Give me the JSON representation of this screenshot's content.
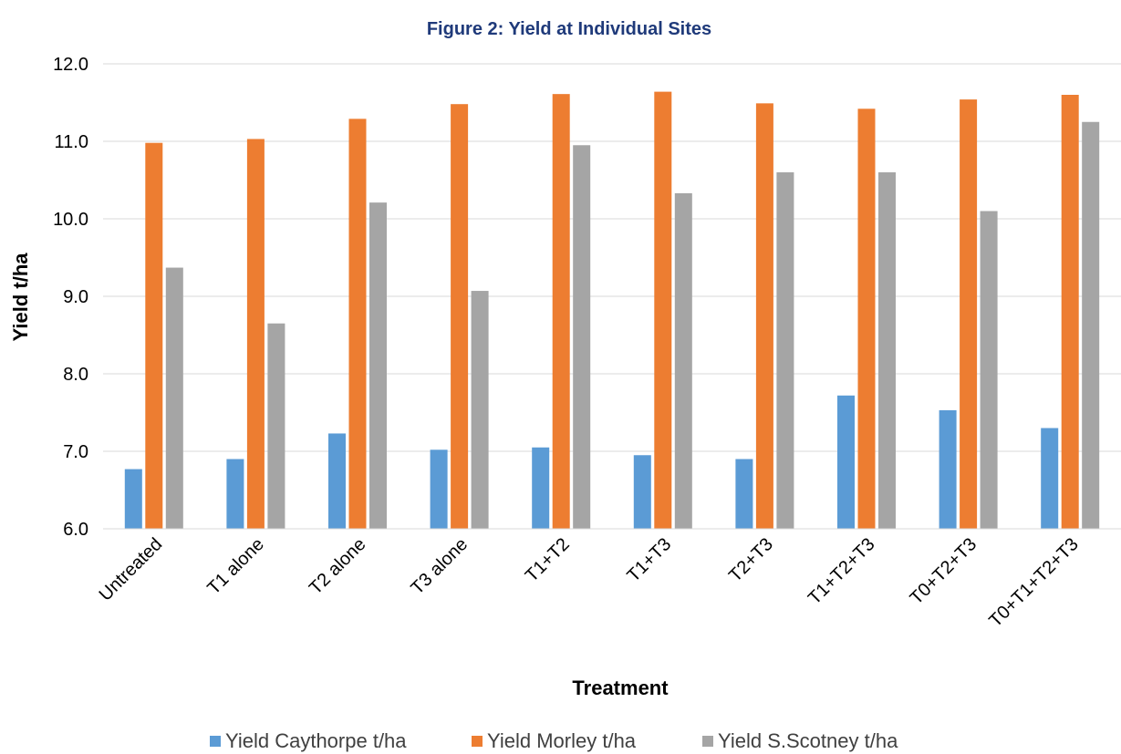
{
  "chart_data": {
    "type": "bar",
    "title": "Figure 2: Yield at Individual Sites",
    "xlabel": "Treatment",
    "ylabel": "Yield t/ha",
    "ylim": [
      6.0,
      12.0
    ],
    "yticks": [
      "6.0",
      "7.0",
      "8.0",
      "9.0",
      "10.0",
      "11.0",
      "12.0"
    ],
    "grid": true,
    "legend_position": "bottom",
    "categories": [
      "Untreated",
      "T1 alone",
      "T2 alone",
      "T3 alone",
      "T1+T2",
      "T1+T3",
      "T2+T3",
      "T1+T2+T3",
      "T0+T2+T3",
      "T0+T1+T2+T3"
    ],
    "series": [
      {
        "name": "Yield Caythorpe t/ha",
        "color": "#5b9bd5",
        "values": [
          6.77,
          6.9,
          7.23,
          7.02,
          7.05,
          6.95,
          6.9,
          7.72,
          7.53,
          7.3
        ]
      },
      {
        "name": "Yield Morley t/ha",
        "color": "#ed7d31",
        "values": [
          10.98,
          11.03,
          11.29,
          11.48,
          11.61,
          11.64,
          11.49,
          11.42,
          11.54,
          11.6
        ]
      },
      {
        "name": "Yield S.Scotney t/ha",
        "color": "#a5a5a5",
        "values": [
          9.37,
          8.65,
          10.21,
          9.07,
          10.95,
          10.33,
          10.6,
          10.6,
          10.1,
          11.25
        ]
      }
    ]
  }
}
